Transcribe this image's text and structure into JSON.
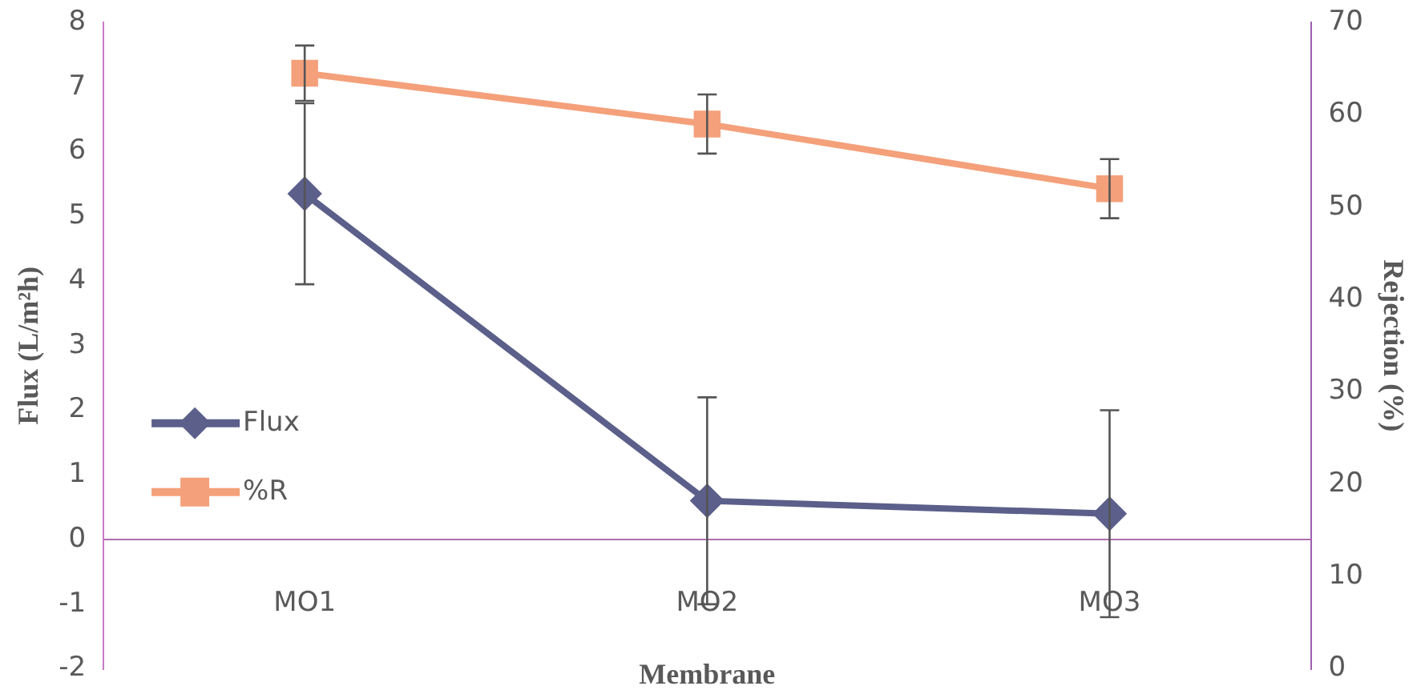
{
  "chart_data": {
    "type": "line",
    "xlabel": "Membrane",
    "ylabel": "Flux (L/m²h)",
    "y2label": "Rejection (%)",
    "categories": [
      "MO1",
      "MO2",
      "MO3"
    ],
    "series": [
      {
        "name": "Flux",
        "color": "#5b5f8a",
        "values": [
          5.35,
          0.6,
          0.4
        ],
        "errors": [
          1.4,
          1.6,
          1.6
        ],
        "marker": "diamond"
      },
      {
        "name": "%R",
        "color": "#f4a07a",
        "values": [
          64.5,
          59,
          52
        ],
        "errors": [
          3,
          3.2,
          3.2
        ],
        "marker": "square",
        "axis": "y2"
      }
    ],
    "ylim": [
      -2,
      8
    ],
    "yticks": [
      -2,
      -1,
      0,
      1,
      2,
      3,
      4,
      5,
      6,
      7,
      8
    ],
    "y2lim": [
      0,
      70
    ],
    "y2ticks": [
      0,
      10,
      20,
      30,
      40,
      50,
      60,
      70
    ],
    "grid": false,
    "legend": "left"
  }
}
